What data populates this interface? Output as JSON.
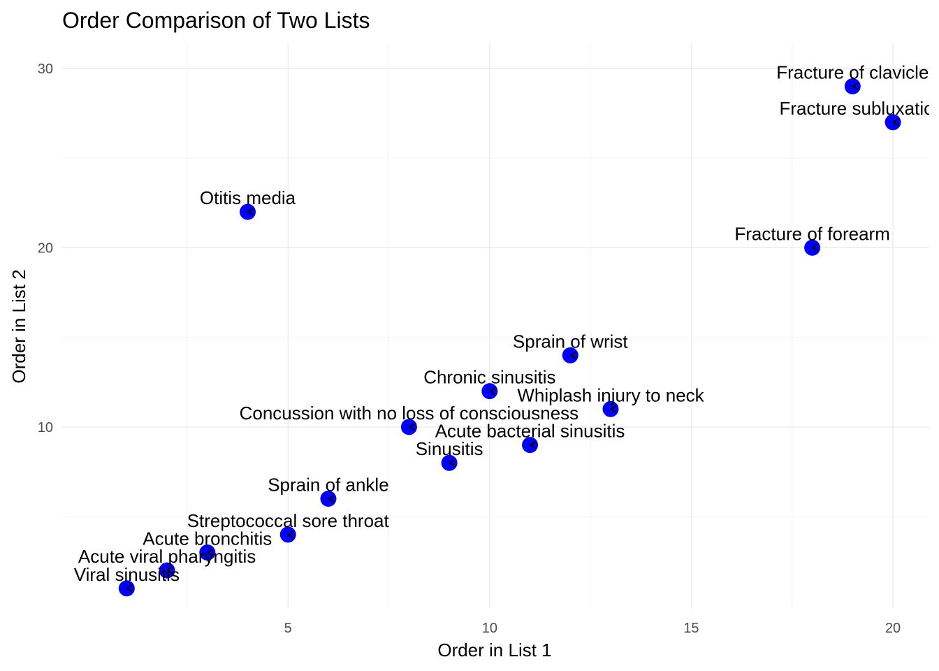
{
  "chart_data": {
    "type": "scatter",
    "title": "Order Comparison of Two Lists",
    "xlabel": "Order in List 1",
    "ylabel": "Order in List 2",
    "xlim": [
      -0.6,
      20.9
    ],
    "ylim": [
      -0.1,
      31.4
    ],
    "x_ticks": [
      5,
      10,
      15,
      20
    ],
    "x_minor_ticks": [
      2.5,
      7.5,
      12.5,
      17.5
    ],
    "y_ticks": [
      10,
      20,
      30
    ],
    "y_minor_ticks": [
      5,
      15,
      25
    ],
    "grid": true,
    "legend": "none",
    "point_color": "#0000ff",
    "marker_color": "#000000",
    "points": [
      {
        "x": 1,
        "y": 1,
        "label": "Viral sinusitis"
      },
      {
        "x": 2,
        "y": 2,
        "label": "Acute viral pharyngitis"
      },
      {
        "x": 3,
        "y": 3,
        "label": "Acute bronchitis"
      },
      {
        "x": 5,
        "y": 4,
        "label": "Streptococcal sore throat"
      },
      {
        "x": 6,
        "y": 6,
        "label": "Sprain of ankle"
      },
      {
        "x": 9,
        "y": 8,
        "label": "Sinusitis"
      },
      {
        "x": 11,
        "y": 9,
        "label": "Acute bacterial sinusitis"
      },
      {
        "x": 8,
        "y": 10,
        "label": "Concussion with no loss of consciousness"
      },
      {
        "x": 13,
        "y": 11,
        "label": "Whiplash injury to neck"
      },
      {
        "x": 10,
        "y": 12,
        "label": "Chronic sinusitis"
      },
      {
        "x": 12,
        "y": 14,
        "label": "Sprain of wrist"
      },
      {
        "x": 18,
        "y": 20,
        "label": "Fracture of forearm"
      },
      {
        "x": 4,
        "y": 22,
        "label": "Otitis media"
      },
      {
        "x": 20,
        "y": 27,
        "label": "Fracture subluxation of wrist"
      },
      {
        "x": 19,
        "y": 29,
        "label": "Fracture of clavicle"
      }
    ]
  }
}
